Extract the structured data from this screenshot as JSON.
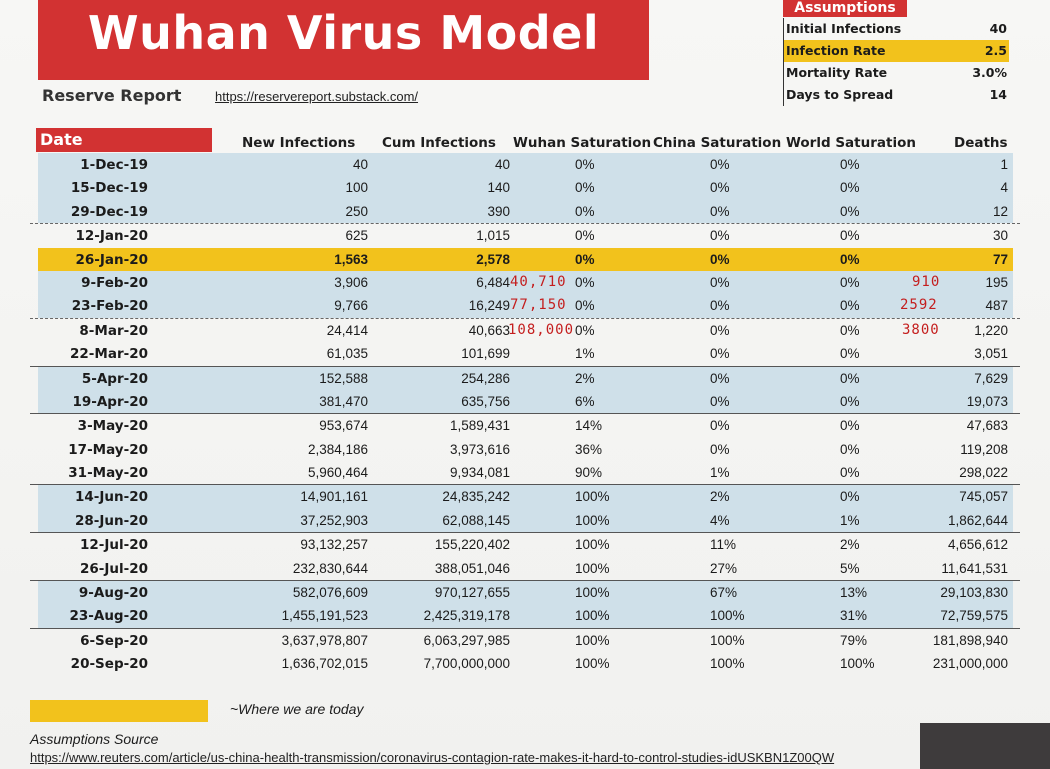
{
  "header": {
    "title": "Wuhan Virus Model",
    "subtitle": "Reserve Report",
    "url": "https://reservereport.substack.com/"
  },
  "assumptions": {
    "heading": "Assumptions",
    "rows": [
      {
        "label": "Initial Infections",
        "value": "40",
        "highlight": false
      },
      {
        "label": "Infection Rate",
        "value": "2.5",
        "highlight": true
      },
      {
        "label": "Mortality Rate",
        "value": "3.0%",
        "highlight": false
      },
      {
        "label": "Days to Spread",
        "value": "14",
        "highlight": false
      }
    ]
  },
  "table": {
    "headers": {
      "date": "Date",
      "new": "New Infections",
      "cum": "Cum Infections",
      "wuhan": "Wuhan Saturation",
      "china": "China Saturation",
      "world": "World Saturation",
      "deaths": "Deaths"
    },
    "rows": [
      {
        "date": "1-Dec-19",
        "new": "40",
        "cum": "40",
        "wuhan": "0%",
        "china": "0%",
        "world": "0%",
        "deaths": "1",
        "style": "blue"
      },
      {
        "date": "15-Dec-19",
        "new": "100",
        "cum": "140",
        "wuhan": "0%",
        "china": "0%",
        "world": "0%",
        "deaths": "4",
        "style": "blue"
      },
      {
        "date": "29-Dec-19",
        "new": "250",
        "cum": "390",
        "wuhan": "0%",
        "china": "0%",
        "world": "0%",
        "deaths": "12",
        "style": "blue"
      },
      {
        "date": "12-Jan-20",
        "new": "625",
        "cum": "1,015",
        "wuhan": "0%",
        "china": "0%",
        "world": "0%",
        "deaths": "30",
        "style": "white",
        "line": "dash"
      },
      {
        "date": "26-Jan-20",
        "new": "1,563",
        "cum": "2,578",
        "wuhan": "0%",
        "china": "0%",
        "world": "0%",
        "deaths": "77",
        "style": "highlight"
      },
      {
        "date": "9-Feb-20",
        "new": "3,906",
        "cum": "6,484",
        "wuhan": "0%",
        "china": "0%",
        "world": "0%",
        "deaths": "195",
        "style": "blue"
      },
      {
        "date": "23-Feb-20",
        "new": "9,766",
        "cum": "16,249",
        "wuhan": "0%",
        "china": "0%",
        "world": "0%",
        "deaths": "487",
        "style": "blue"
      },
      {
        "date": "8-Mar-20",
        "new": "24,414",
        "cum": "40,663",
        "wuhan": "0%",
        "china": "0%",
        "world": "0%",
        "deaths": "1,220",
        "style": "white",
        "line": "dash"
      },
      {
        "date": "22-Mar-20",
        "new": "61,035",
        "cum": "101,699",
        "wuhan": "1%",
        "china": "0%",
        "world": "0%",
        "deaths": "3,051",
        "style": "white"
      },
      {
        "date": "5-Apr-20",
        "new": "152,588",
        "cum": "254,286",
        "wuhan": "2%",
        "china": "0%",
        "world": "0%",
        "deaths": "7,629",
        "style": "blue",
        "line": "solid"
      },
      {
        "date": "19-Apr-20",
        "new": "381,470",
        "cum": "635,756",
        "wuhan": "6%",
        "china": "0%",
        "world": "0%",
        "deaths": "19,073",
        "style": "blue"
      },
      {
        "date": "3-May-20",
        "new": "953,674",
        "cum": "1,589,431",
        "wuhan": "14%",
        "china": "0%",
        "world": "0%",
        "deaths": "47,683",
        "style": "white",
        "line": "solid"
      },
      {
        "date": "17-May-20",
        "new": "2,384,186",
        "cum": "3,973,616",
        "wuhan": "36%",
        "china": "0%",
        "world": "0%",
        "deaths": "119,208",
        "style": "white"
      },
      {
        "date": "31-May-20",
        "new": "5,960,464",
        "cum": "9,934,081",
        "wuhan": "90%",
        "china": "1%",
        "world": "0%",
        "deaths": "298,022",
        "style": "white"
      },
      {
        "date": "14-Jun-20",
        "new": "14,901,161",
        "cum": "24,835,242",
        "wuhan": "100%",
        "china": "2%",
        "world": "0%",
        "deaths": "745,057",
        "style": "blue",
        "line": "solid"
      },
      {
        "date": "28-Jun-20",
        "new": "37,252,903",
        "cum": "62,088,145",
        "wuhan": "100%",
        "china": "4%",
        "world": "1%",
        "deaths": "1,862,644",
        "style": "blue"
      },
      {
        "date": "12-Jul-20",
        "new": "93,132,257",
        "cum": "155,220,402",
        "wuhan": "100%",
        "china": "11%",
        "world": "2%",
        "deaths": "4,656,612",
        "style": "white",
        "line": "solid"
      },
      {
        "date": "26-Jul-20",
        "new": "232,830,644",
        "cum": "388,051,046",
        "wuhan": "100%",
        "china": "27%",
        "world": "5%",
        "deaths": "11,641,531",
        "style": "white"
      },
      {
        "date": "9-Aug-20",
        "new": "582,076,609",
        "cum": "970,127,655",
        "wuhan": "100%",
        "china": "67%",
        "world": "13%",
        "deaths": "29,103,830",
        "style": "blue",
        "line": "solid"
      },
      {
        "date": "23-Aug-20",
        "new": "1,455,191,523",
        "cum": "2,425,319,178",
        "wuhan": "100%",
        "china": "100%",
        "world": "31%",
        "deaths": "72,759,575",
        "style": "blue"
      },
      {
        "date": "6-Sep-20",
        "new": "3,637,978,807",
        "cum": "6,063,297,985",
        "wuhan": "100%",
        "china": "100%",
        "world": "79%",
        "deaths": "181,898,940",
        "style": "white",
        "line": "solid"
      },
      {
        "date": "20-Sep-20",
        "new": "1,636,702,015",
        "cum": "7,700,000,000",
        "wuhan": "100%",
        "china": "100%",
        "world": "100%",
        "deaths": "231,000,000",
        "style": "white"
      }
    ]
  },
  "handwritten": [
    {
      "text": "40,710",
      "row": 5
    },
    {
      "text": "77,150",
      "row": 6
    },
    {
      "text": "108,000",
      "row": 7
    },
    {
      "text": "910",
      "row": 5
    },
    {
      "text": "2592",
      "row": 6
    },
    {
      "text": "3800",
      "row": 7
    }
  ],
  "legend": {
    "highlight_color": "#f2c21c",
    "label": "~Where we are today"
  },
  "source": {
    "label": "Assumptions Source",
    "url": "https://www.reuters.com/article/us-china-health-transmission/coronavirus-contagion-rate-makes-it-hard-to-control-studies-idUSKBN1Z00QW"
  },
  "colors": {
    "banner_red": "#d23232",
    "row_blue": "#cfe0e9",
    "highlight_yellow": "#f2c21c",
    "handwriting_red": "#c41e1e"
  }
}
